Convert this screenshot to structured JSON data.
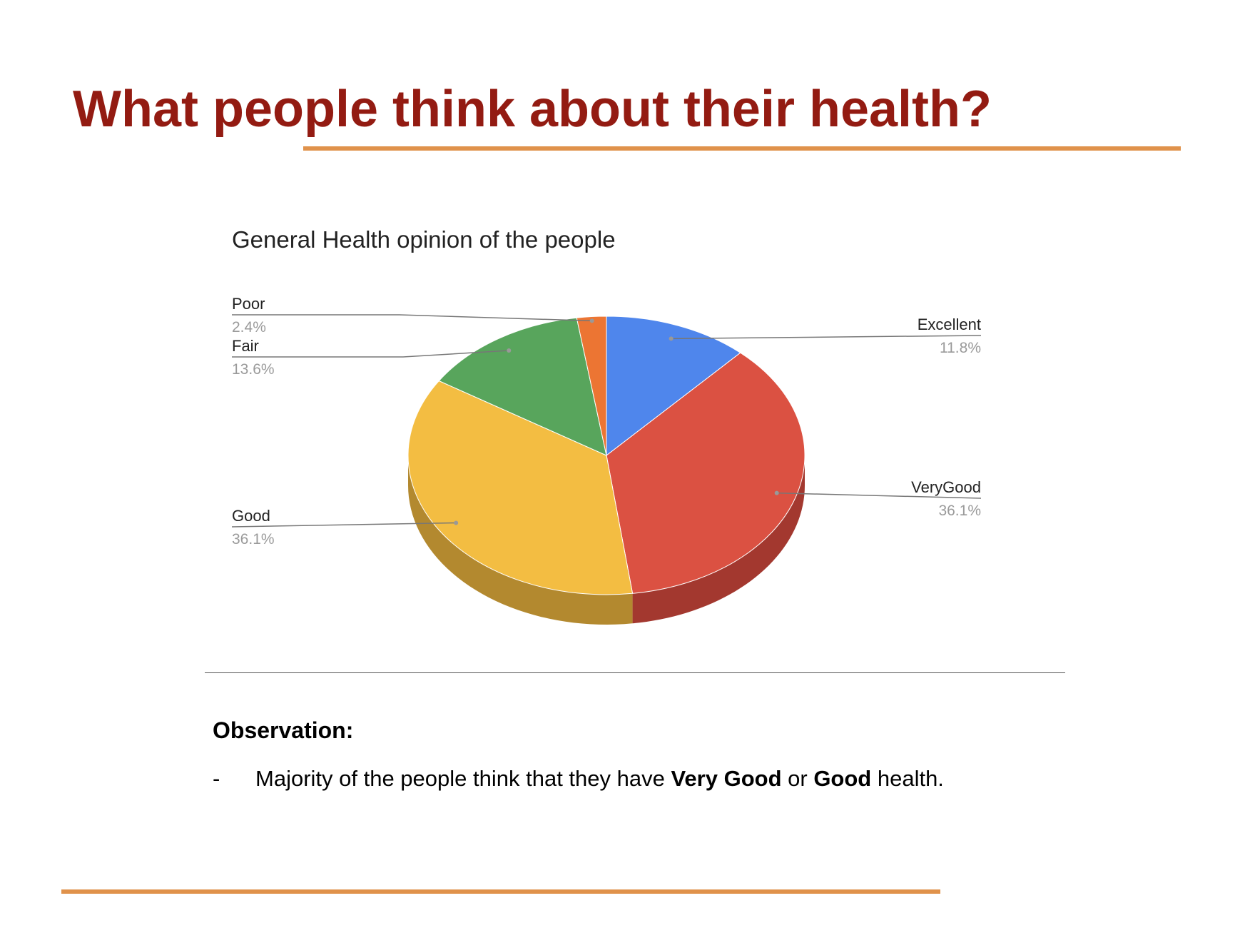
{
  "slide": {
    "title": "What people think about their health?"
  },
  "chart_data": {
    "type": "pie",
    "title": "General Health opinion of the people",
    "style": "3d",
    "categories": [
      "Excellent",
      "VeryGood",
      "Good",
      "Fair",
      "Poor"
    ],
    "values": [
      11.8,
      36.1,
      36.1,
      13.6,
      2.4
    ],
    "value_labels": [
      "11.8%",
      "36.1%",
      "36.1%",
      "13.6%",
      "2.4%"
    ],
    "colors": [
      "#4f86ec",
      "#db5142",
      "#f3bd42",
      "#58a55c",
      "#ec7533"
    ],
    "side_colors": [
      "#3a64b0",
      "#a3382f",
      "#b3892f",
      "#3f7a43",
      "#b0561f"
    ],
    "legend": "labeled-slices"
  },
  "observation": {
    "heading": "Observation:",
    "bullet": "-",
    "text_parts": [
      {
        "text": "Majority of the people think that they have ",
        "bold": false
      },
      {
        "text": "Very Good",
        "bold": true
      },
      {
        "text": " or ",
        "bold": false
      },
      {
        "text": "Good",
        "bold": true
      },
      {
        "text": " health.",
        "bold": false
      }
    ]
  },
  "colors": {
    "title": "#931b12",
    "accent_rule": "#e0924b"
  }
}
